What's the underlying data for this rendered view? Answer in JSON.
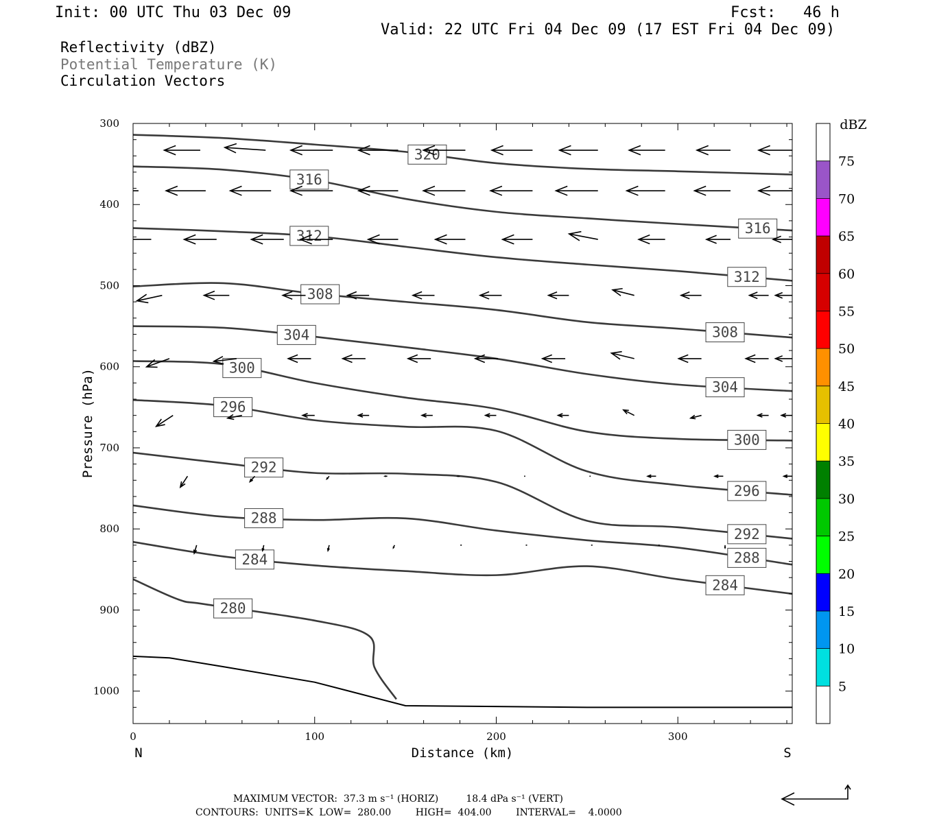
{
  "header": {
    "init": "Init: 00 UTC Thu 03 Dec 09",
    "fcst": "Fcst:   46 h",
    "valid": "Valid: 22 UTC Fri 04 Dec 09 (17 EST Fri 04 Dec 09)"
  },
  "fields": [
    "Reflectivity (dBZ)",
    "Potential Temperature (K)",
    "Circulation Vectors"
  ],
  "chart_data": {
    "type": "contour",
    "xlabel": "Distance (km)",
    "ylabel": "Pressure (hPa)",
    "xlim": [
      0,
      363
    ],
    "ylim": [
      1040,
      300
    ],
    "x_ticks": [
      0,
      100,
      200,
      300
    ],
    "y_ticks": [
      300,
      400,
      500,
      600,
      700,
      800,
      900,
      1000
    ],
    "left_end_label": "N",
    "right_end_label": "S",
    "theta_contours": [
      {
        "value": 320,
        "label": "320",
        "x": [
          0,
          50,
          100,
          150,
          200,
          250,
          300,
          363
        ],
        "p": [
          314,
          318,
          326,
          335,
          349,
          356,
          359,
          363
        ]
      },
      {
        "value": 316,
        "label": "316",
        "x": [
          0,
          50,
          100,
          150,
          200,
          250,
          300,
          363
        ],
        "p": [
          353,
          357,
          370,
          393,
          409,
          417,
          424,
          432
        ]
      },
      {
        "value": 312,
        "label": "312",
        "x": [
          0,
          50,
          100,
          150,
          200,
          250,
          300,
          363
        ],
        "p": [
          429,
          433,
          439,
          452,
          465,
          474,
          482,
          494
        ]
      },
      {
        "value": 308,
        "label": "308",
        "x": [
          0,
          50,
          100,
          150,
          200,
          250,
          300,
          363
        ],
        "p": [
          501,
          497,
          510,
          520,
          530,
          545,
          553,
          564
        ]
      },
      {
        "value": 304,
        "label": "304",
        "x": [
          0,
          50,
          100,
          150,
          200,
          250,
          300,
          363
        ],
        "p": [
          550,
          552,
          563,
          576,
          590,
          609,
          622,
          630
        ]
      },
      {
        "value": 300,
        "label": "300",
        "x": [
          0,
          50,
          100,
          150,
          200,
          250,
          300,
          363
        ],
        "p": [
          593,
          597,
          620,
          638,
          652,
          680,
          689,
          691
        ]
      },
      {
        "value": 296,
        "label": "296",
        "x": [
          0,
          50,
          100,
          150,
          200,
          250,
          300,
          363
        ],
        "p": [
          641,
          648,
          666,
          674,
          679,
          729,
          746,
          758
        ]
      },
      {
        "value": 292,
        "label": "292",
        "x": [
          0,
          50,
          100,
          150,
          200,
          250,
          300,
          363
        ],
        "p": [
          706,
          719,
          731,
          732,
          742,
          790,
          798,
          812
        ]
      },
      {
        "value": 288,
        "label": "288",
        "x": [
          0,
          50,
          100,
          150,
          200,
          250,
          300,
          363
        ],
        "p": [
          771,
          785,
          789,
          787,
          802,
          814,
          823,
          844
        ]
      },
      {
        "value": 284,
        "label": "284",
        "x": [
          0,
          50,
          100,
          150,
          200,
          250,
          300,
          363
        ],
        "p": [
          816,
          834,
          845,
          852,
          857,
          846,
          862,
          880
        ]
      },
      {
        "value": 280,
        "label": "280",
        "x": [
          0,
          25,
          40,
          100,
          130,
          133,
          145
        ],
        "p": [
          862,
          887,
          893,
          913,
          932,
          971,
          1010
        ]
      }
    ],
    "terrain_surface": {
      "x": [
        0,
        20,
        50,
        100,
        150,
        200,
        250,
        300,
        363
      ],
      "p": [
        957,
        959,
        970,
        989,
        1018,
        1019,
        1020,
        1020,
        1020
      ]
    },
    "vectors": [
      {
        "level": 333,
        "x": [
          0,
          37,
          73,
          110,
          146,
          183,
          220,
          256,
          293,
          329,
          363
        ],
        "u": [
          -37,
          -30,
          -34,
          -35,
          -33,
          -35,
          -34,
          -32,
          -30,
          -28,
          -28
        ],
        "w": [
          0,
          0,
          1,
          0,
          0,
          0,
          0,
          0,
          0,
          0,
          0
        ]
      },
      {
        "level": 383,
        "x": [
          3,
          40,
          76,
          110,
          146,
          183,
          220,
          256,
          293,
          329,
          363
        ],
        "u": [
          -37,
          -33,
          -34,
          -35,
          -33,
          -35,
          -35,
          -35,
          -32,
          -30,
          -28
        ],
        "w": [
          0,
          0,
          0,
          0,
          0,
          0,
          0,
          0,
          0,
          0,
          0
        ]
      },
      {
        "level": 443,
        "x": [
          10,
          46,
          83,
          110,
          146,
          183,
          220,
          256,
          293,
          329,
          363
        ],
        "u": [
          -28,
          -27,
          -27,
          -27,
          -25,
          -25,
          -25,
          -24,
          -22,
          -20,
          -16
        ],
        "w": [
          0,
          0,
          0,
          0,
          0,
          0,
          0,
          2,
          0,
          0,
          0
        ]
      },
      {
        "level": 512,
        "x": [
          16,
          53,
          95,
          130,
          166,
          203,
          240,
          276,
          313,
          350,
          363
        ],
        "u": [
          -21,
          -21,
          -19,
          -18,
          -18,
          -18,
          -17,
          -18,
          -17,
          -16,
          -14
        ],
        "w": [
          -2,
          0,
          0,
          0,
          0,
          0,
          0,
          2,
          0,
          0,
          0
        ]
      },
      {
        "level": 590,
        "x": [
          20,
          57,
          98,
          128,
          164,
          201,
          238,
          276,
          313,
          350,
          363
        ],
        "u": [
          -19,
          -19,
          -19,
          -19,
          -19,
          -19,
          -19,
          -19,
          -19,
          -19,
          -14
        ],
        "w": [
          -3,
          -1,
          0,
          0,
          0,
          0,
          0,
          2,
          0,
          0,
          0
        ]
      },
      {
        "level": 660,
        "x": [
          22,
          60,
          100,
          130,
          165,
          200,
          240,
          276,
          313,
          350,
          363
        ],
        "u": [
          -14,
          -12,
          -10,
          -9,
          -9,
          -9,
          -9,
          -9,
          -9,
          -9,
          -9
        ],
        "w": [
          -4,
          -1,
          0,
          0,
          0,
          0,
          0,
          2,
          -1,
          0,
          0
        ]
      },
      {
        "level": 735,
        "x": [
          30,
          67,
          108,
          140,
          180,
          216,
          252,
          288,
          325,
          363
        ],
        "u": [
          -6,
          -4,
          -2,
          -2,
          -2,
          -1,
          -1,
          -7,
          -7,
          -7
        ],
        "w": [
          -4,
          -2,
          -1,
          0,
          0,
          0,
          0,
          0,
          0,
          0
        ]
      },
      {
        "level": 820,
        "x": [
          35,
          72,
          108,
          144,
          181,
          217,
          253,
          290,
          326
        ],
        "u": [
          -2,
          -1,
          -1,
          -1,
          0,
          0,
          0,
          0,
          0
        ],
        "w": [
          -3,
          -2,
          -2,
          -1,
          0,
          0,
          0,
          0,
          -1
        ]
      }
    ],
    "reflectivity_colorbar": {
      "unit": "dBZ",
      "levels": [
        5,
        10,
        15,
        20,
        25,
        30,
        35,
        40,
        45,
        50,
        55,
        60,
        65,
        70,
        75
      ],
      "colors": [
        "#00e0e0",
        "#0096f0",
        "#0000ff",
        "#00ff00",
        "#00c800",
        "#008000",
        "#ffff00",
        "#e6c000",
        "#ff9000",
        "#ff0000",
        "#d60000",
        "#c00000",
        "#ff00ff",
        "#9a55c8"
      ]
    }
  },
  "footer": {
    "max_vector": "MAXIMUM VECTOR:  37.3 m s⁻¹ (HORIZ)         18.4 dPa s⁻¹ (VERT)",
    "contours": "CONTOURS:  UNITS=K  LOW=  280.00        HIGH=  404.00        INTERVAL=    4.0000"
  }
}
